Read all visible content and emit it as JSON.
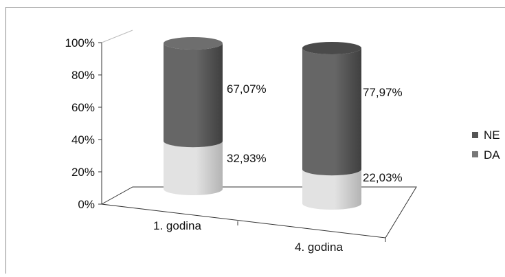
{
  "chart_data": {
    "type": "bar",
    "style": "3d-stacked-cylinder-percent",
    "categories": [
      "1. godina",
      "4. godina"
    ],
    "series": [
      {
        "name": "DA",
        "values": [
          32.93,
          22.03
        ],
        "labels": [
          "32,93%",
          "22,03%"
        ],
        "color": "#d7d7d7"
      },
      {
        "name": "NE",
        "values": [
          67.07,
          77.97
        ],
        "labels": [
          "67,07%",
          "77,97%"
        ],
        "color": "#5a5a5a"
      }
    ],
    "bar_colors": {
      "ne": [
        "#666666",
        "#404040"
      ],
      "da": [
        "#e2e2e2",
        "#b4b4b4"
      ]
    },
    "y_ticks": [
      "0%",
      "20%",
      "40%",
      "60%",
      "80%",
      "100%"
    ],
    "ylim": [
      0,
      100
    ],
    "legend": {
      "position": "right",
      "items": [
        "NE",
        "DA"
      ]
    },
    "grid": false
  }
}
